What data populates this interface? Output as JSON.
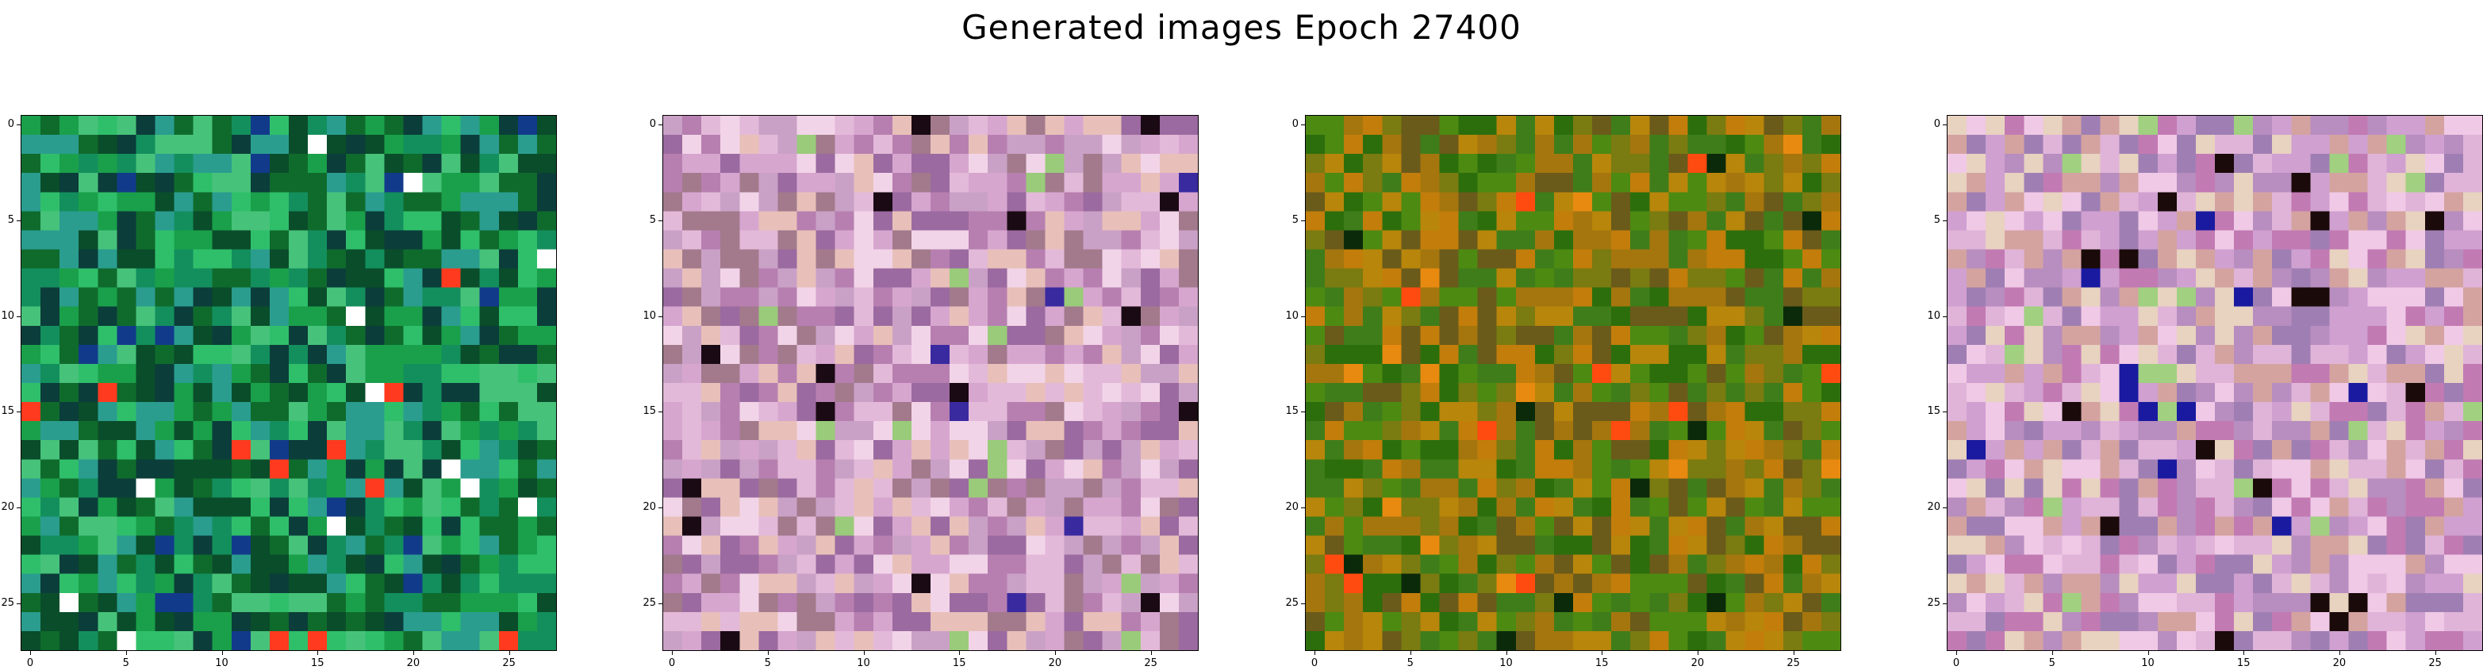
{
  "figure": {
    "title": "Generated images Epoch 27400",
    "grid_size": 28,
    "ticks": [
      "0",
      "5",
      "10",
      "15",
      "20",
      "25"
    ],
    "panels": [
      {
        "name": "generated-image-1",
        "base": "#1f8a3a",
        "palette": [
          "#0f6b2c",
          "#1aa04a",
          "#2fbf6a",
          "#0a4d2a",
          "#138f5d",
          "#47c27a",
          "#0b3d3a",
          "#2a9d8f"
        ],
        "accents": [
          "#ff3a1f",
          "#ffffff",
          "#123a8a"
        ]
      },
      {
        "name": "generated-image-2",
        "base": "#c48ab7",
        "palette": [
          "#d7a6cf",
          "#b77fb0",
          "#e3b9d9",
          "#9b6aa0",
          "#f2d4e8",
          "#caa1c6",
          "#a27a8c",
          "#e8c0b9"
        ],
        "accents": [
          "#1a0a14",
          "#3a2aa0",
          "#9acb7a"
        ]
      },
      {
        "name": "generated-image-3",
        "base": "#8d6b14",
        "palette": [
          "#2c6e0c",
          "#4d8a12",
          "#7a7b10",
          "#a5760e",
          "#c27d0b",
          "#6a5b1a",
          "#3f7d1a",
          "#b8860b"
        ],
        "accents": [
          "#ff4a10",
          "#0b2a0a",
          "#e88a10"
        ]
      },
      {
        "name": "generated-image-4",
        "base": "#d0a4c8",
        "palette": [
          "#e0b4d8",
          "#b88dbf",
          "#f0c9e6",
          "#c27ab3",
          "#d4a3a0",
          "#e8d2c0",
          "#9f7fb3",
          "#cfa0d0"
        ],
        "accents": [
          "#1a0a0a",
          "#1a1aa0",
          "#a0d080"
        ]
      }
    ]
  }
}
